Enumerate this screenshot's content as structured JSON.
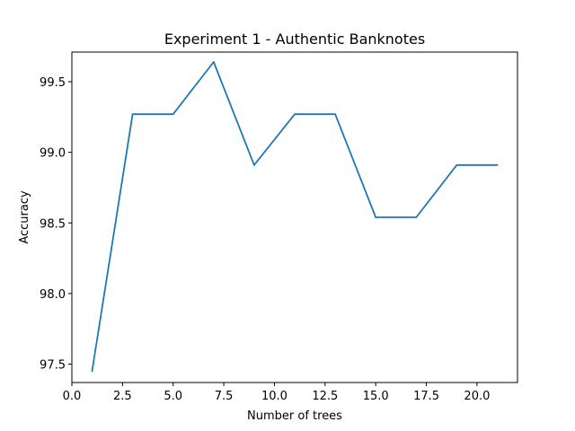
{
  "chart_data": {
    "type": "line",
    "title": "Experiment 1 - Authentic Banknotes",
    "xlabel": "Number of trees",
    "ylabel": "Accuracy",
    "xlim": [
      0,
      22
    ],
    "ylim": [
      97.37,
      99.71
    ],
    "xticks": [
      0.0,
      2.5,
      5.0,
      7.5,
      10.0,
      12.5,
      15.0,
      17.5,
      20.0
    ],
    "xtick_labels": [
      "0.0",
      "2.5",
      "5.0",
      "7.5",
      "10.0",
      "12.5",
      "15.0",
      "17.5",
      "20.0"
    ],
    "yticks": [
      97.5,
      98.0,
      98.5,
      99.0,
      99.5
    ],
    "ytick_labels": [
      "97.5",
      "98.0",
      "98.5",
      "99.0",
      "99.5"
    ],
    "grid": false,
    "legend": "none",
    "series": [
      {
        "color": "#1f77b4",
        "x": [
          1,
          3,
          5,
          7,
          9,
          11,
          13,
          15,
          17,
          19,
          21
        ],
        "y": [
          97.45,
          99.27,
          99.27,
          99.64,
          98.91,
          99.27,
          99.27,
          98.54,
          98.54,
          98.91,
          98.91
        ]
      }
    ]
  }
}
